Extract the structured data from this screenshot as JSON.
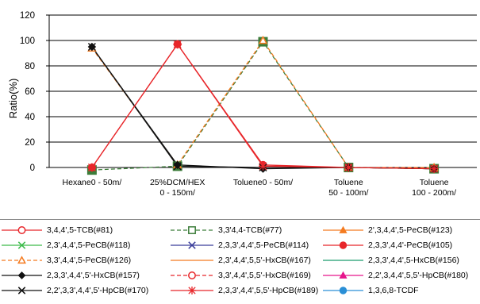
{
  "chart_data": {
    "type": "line",
    "ylabel": "Ratio(%)",
    "ylim": [
      0,
      120
    ],
    "yticks": [
      0,
      20,
      40,
      60,
      80,
      100,
      120
    ],
    "grid": "horizontal",
    "categories": [
      [
        "Hexane0 - 50m/"
      ],
      [
        "25%DCM/HEX",
        "0 - 150m/"
      ],
      [
        "Toluene0 - 50m/"
      ],
      [
        "Toluene",
        "50 - 100m/"
      ],
      [
        "Toluene",
        "100 - 200m/"
      ]
    ],
    "series": [
      {
        "name": "3,4,4',5-TCB(#81)",
        "color": "#e8262a",
        "marker": "circle-open",
        "dash": "solid",
        "values": [
          null,
          null,
          null,
          null,
          null
        ]
      },
      {
        "name": "3,3'4,4-TCB(#77)",
        "color": "#3c7d3a",
        "marker": "square-open",
        "dash": "dashed",
        "values": [
          -2,
          1,
          99,
          0,
          -1
        ]
      },
      {
        "name": "2',3,4,4',5-PeCB(#123)",
        "color": "#f47b20",
        "marker": "triangle-filled",
        "dash": "solid",
        "values": [
          null,
          null,
          null,
          null,
          null
        ]
      },
      {
        "name": "2,3',4,4',5-PeCB(#118)",
        "color": "#3dbb4b",
        "marker": "x",
        "dash": "solid",
        "values": [
          null,
          null,
          null,
          null,
          null
        ]
      },
      {
        "name": "2,3,3',4,4',5-PeCB(#114)",
        "color": "#3b3f9a",
        "marker": "x",
        "dash": "solid",
        "values": [
          null,
          null,
          null,
          null,
          null
        ]
      },
      {
        "name": "2,3,3',4,4'-PeCB(#105)",
        "color": "#e8262a",
        "marker": "circle-filled",
        "dash": "solid",
        "values": [
          0,
          97,
          2,
          0,
          -1
        ]
      },
      {
        "name": "3,3',4,4',5-PeCB(#126)",
        "color": "#f47b20",
        "marker": "triangle-open",
        "dash": "dashed",
        "values": [
          94,
          2,
          100,
          0,
          0
        ]
      },
      {
        "name": "2,3',4,4',5,5'-HxCB(#167)",
        "color": "#f47b20",
        "marker": "none",
        "dash": "solid",
        "values": [
          null,
          null,
          null,
          null,
          null
        ]
      },
      {
        "name": "2,3,3',4,4',5-HxCB(#156)",
        "color": "#1a9c6e",
        "marker": "none",
        "dash": "solid",
        "values": [
          null,
          null,
          null,
          null,
          null
        ]
      },
      {
        "name": "2,3,3',4,4',5'-HxCB(#157)",
        "color": "#111111",
        "marker": "diamond-filled",
        "dash": "solid",
        "values": [
          95,
          2,
          -1,
          0,
          -1
        ]
      },
      {
        "name": "3,3',4,4',5,5'-HxCB(#169)",
        "color": "#e8262a",
        "marker": "circle-open",
        "dash": "dashed",
        "values": [
          null,
          null,
          null,
          null,
          null
        ]
      },
      {
        "name": "2,2',3,4,4',5,5'-HpCB(#180)",
        "color": "#e6168c",
        "marker": "triangle-filled",
        "dash": "solid",
        "values": [
          null,
          null,
          null,
          null,
          null
        ]
      },
      {
        "name": "2,2',3,3',4,4',5'-HpCB(#170)",
        "color": "#111111",
        "marker": "x",
        "dash": "solid",
        "values": [
          95,
          1,
          0,
          0,
          -1
        ]
      },
      {
        "name": "2,3,3',4,4',5,5'-HpCB(#189)",
        "color": "#e8262a",
        "marker": "star",
        "dash": "solid",
        "values": [
          0,
          97,
          1,
          0,
          -1
        ]
      },
      {
        "name": "1,3,6,8-TCDF",
        "color": "#2a8fd6",
        "marker": "circle-filled",
        "dash": "solid",
        "values": [
          null,
          null,
          null,
          null,
          null
        ]
      }
    ]
  }
}
